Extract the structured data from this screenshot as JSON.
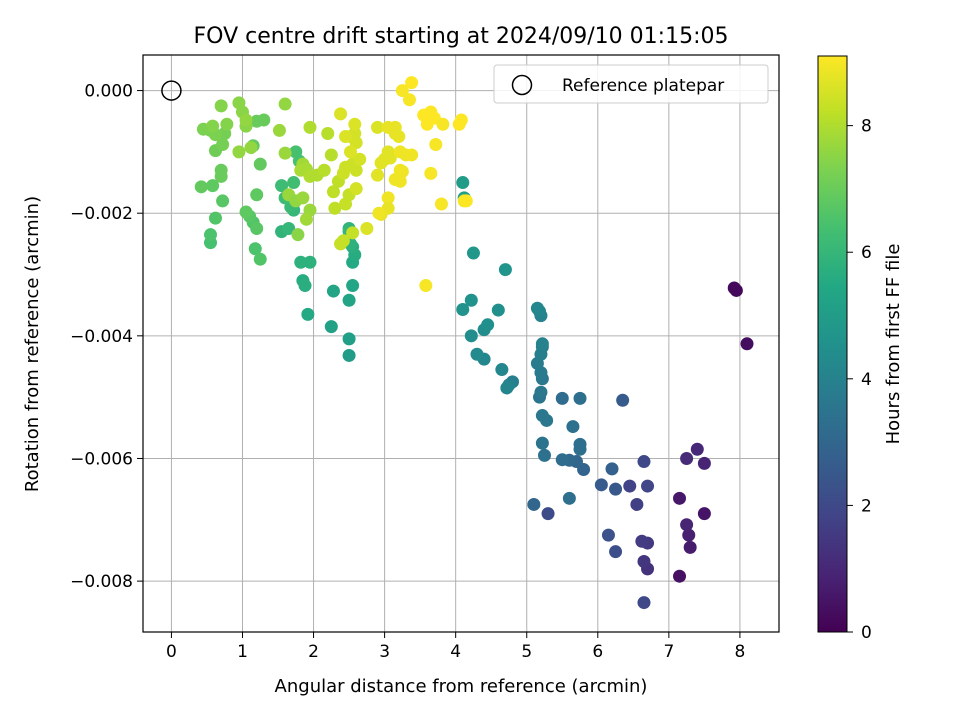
{
  "chart_data": {
    "type": "scatter",
    "title": "FOV centre drift starting at 2024/09/10 01:15:05",
    "xlabel": "Angular distance from reference (arcmin)",
    "ylabel": "Rotation from reference (arcmin)",
    "xlim": [
      -0.4,
      8.55
    ],
    "ylim": [
      -0.00883,
      0.00058
    ],
    "grid": true,
    "x_ticks": [
      0,
      1,
      2,
      3,
      4,
      5,
      6,
      7,
      8
    ],
    "x_tick_labels": [
      "0",
      "1",
      "2",
      "3",
      "4",
      "5",
      "6",
      "7",
      "8"
    ],
    "y_ticks": [
      0.0,
      -0.002,
      -0.004,
      -0.006,
      -0.008
    ],
    "y_tick_labels": [
      "0.000",
      "−0.002",
      "−0.004",
      "−0.006",
      "−0.008"
    ],
    "legend": {
      "label": "Reference platepar",
      "position": "top-right"
    },
    "reference_point": {
      "x": 0,
      "y": 0
    },
    "colorbar": {
      "label": "Hours from first FF file",
      "colormap": "viridis",
      "range": [
        0,
        9.1
      ],
      "ticks": [
        0,
        2,
        4,
        6,
        8
      ],
      "tick_labels": [
        "0",
        "2",
        "4",
        "6",
        "8"
      ]
    },
    "points": [
      [
        7.92,
        -0.00322,
        0.2
      ],
      [
        7.95,
        -0.00326,
        0.2
      ],
      [
        8.1,
        -0.00413,
        0.3
      ],
      [
        7.15,
        -0.00792,
        0.4
      ],
      [
        7.5,
        -0.0069,
        0.5
      ],
      [
        7.3,
        -0.00745,
        0.7
      ],
      [
        7.28,
        -0.00725,
        0.8
      ],
      [
        7.25,
        -0.00708,
        0.9
      ],
      [
        7.15,
        -0.00665,
        0.6
      ],
      [
        7.5,
        -0.00608,
        0.9
      ],
      [
        7.4,
        -0.00585,
        1.0
      ],
      [
        7.25,
        -0.006,
        1.1
      ],
      [
        6.7,
        -0.0078,
        1.3
      ],
      [
        6.65,
        -0.00768,
        1.4
      ],
      [
        6.7,
        -0.00738,
        1.5
      ],
      [
        6.62,
        -0.00735,
        1.6
      ],
      [
        6.55,
        -0.00675,
        1.7
      ],
      [
        6.45,
        -0.00645,
        1.8
      ],
      [
        6.7,
        -0.00645,
        1.9
      ],
      [
        6.65,
        -0.00605,
        2.0
      ],
      [
        6.65,
        -0.00835,
        2.0
      ],
      [
        6.25,
        -0.00752,
        2.2
      ],
      [
        6.15,
        -0.00725,
        2.3
      ],
      [
        6.25,
        -0.0065,
        2.5
      ],
      [
        6.05,
        -0.00643,
        2.6
      ],
      [
        6.2,
        -0.00617,
        2.8
      ],
      [
        5.8,
        -0.00618,
        2.9
      ],
      [
        5.7,
        -0.00605,
        3.0
      ],
      [
        5.6,
        -0.00603,
        3.1
      ],
      [
        5.5,
        -0.00602,
        3.2
      ],
      [
        5.75,
        -0.00585,
        3.3
      ],
      [
        5.75,
        -0.00577,
        3.3
      ],
      [
        5.65,
        -0.00548,
        3.4
      ],
      [
        5.3,
        -0.0069,
        2.1
      ],
      [
        5.1,
        -0.00675,
        3.0
      ],
      [
        5.6,
        -0.00665,
        3.3
      ],
      [
        5.5,
        -0.00502,
        3.2
      ],
      [
        5.75,
        -0.00502,
        3.3
      ],
      [
        6.35,
        -0.00505,
        2.6
      ],
      [
        5.25,
        -0.00595,
        3.4
      ],
      [
        5.22,
        -0.00575,
        3.5
      ],
      [
        5.28,
        -0.00538,
        3.6
      ],
      [
        5.22,
        -0.0053,
        3.6
      ],
      [
        5.18,
        -0.005,
        3.5
      ],
      [
        5.2,
        -0.00492,
        3.6
      ],
      [
        5.22,
        -0.0047,
        3.6
      ],
      [
        5.2,
        -0.0046,
        3.7
      ],
      [
        5.15,
        -0.00445,
        3.8
      ],
      [
        5.2,
        -0.0043,
        3.9
      ],
      [
        5.22,
        -0.00418,
        3.9
      ],
      [
        5.22,
        -0.00413,
        4.0
      ],
      [
        5.2,
        -0.00367,
        4.0
      ],
      [
        5.18,
        -0.0036,
        4.1
      ],
      [
        5.15,
        -0.00355,
        4.2
      ],
      [
        4.8,
        -0.00475,
        3.9
      ],
      [
        4.75,
        -0.0048,
        4.0
      ],
      [
        4.72,
        -0.00485,
        4.1
      ],
      [
        4.65,
        -0.00455,
        4.2
      ],
      [
        4.4,
        -0.00438,
        4.2
      ],
      [
        4.3,
        -0.0043,
        4.3
      ],
      [
        4.22,
        -0.004,
        4.4
      ],
      [
        4.4,
        -0.0039,
        4.4
      ],
      [
        4.45,
        -0.00382,
        4.5
      ],
      [
        4.6,
        -0.00358,
        4.5
      ],
      [
        4.1,
        -0.00357,
        4.6
      ],
      [
        4.22,
        -0.00342,
        4.6
      ],
      [
        4.7,
        -0.00292,
        4.7
      ],
      [
        4.25,
        -0.00265,
        4.8
      ],
      [
        4.1,
        -0.0015,
        5.0
      ],
      [
        4.12,
        -0.00175,
        5.1
      ],
      [
        2.5,
        -0.00432,
        5.0
      ],
      [
        2.5,
        -0.00405,
        5.1
      ],
      [
        2.25,
        -0.00385,
        5.2
      ],
      [
        2.5,
        -0.00342,
        5.3
      ],
      [
        2.28,
        -0.00327,
        5.3
      ],
      [
        2.55,
        -0.00318,
        5.4
      ],
      [
        1.92,
        -0.00365,
        5.5
      ],
      [
        1.85,
        -0.0031,
        5.6
      ],
      [
        1.88,
        -0.00318,
        5.7
      ],
      [
        1.82,
        -0.0028,
        5.8
      ],
      [
        1.95,
        -0.0028,
        5.8
      ],
      [
        2.55,
        -0.0028,
        5.5
      ],
      [
        2.58,
        -0.00268,
        5.6
      ],
      [
        2.55,
        -0.00255,
        5.7
      ],
      [
        2.52,
        -0.0025,
        5.8
      ],
      [
        2.5,
        -0.00225,
        5.9
      ],
      [
        2.5,
        -0.0023,
        6.0
      ],
      [
        1.55,
        -0.0023,
        5.9
      ],
      [
        1.65,
        -0.00225,
        6.0
      ],
      [
        1.72,
        -0.00195,
        6.0
      ],
      [
        1.68,
        -0.0019,
        6.1
      ],
      [
        1.6,
        -0.00175,
        6.2
      ],
      [
        1.55,
        -0.00155,
        6.2
      ],
      [
        1.72,
        -0.0015,
        6.3
      ],
      [
        1.75,
        -0.001,
        6.4
      ],
      [
        1.8,
        -0.00115,
        6.4
      ],
      [
        1.18,
        -0.00258,
        6.5
      ],
      [
        1.25,
        -0.00275,
        6.6
      ],
      [
        1.15,
        -0.00215,
        6.6
      ],
      [
        1.2,
        -0.00225,
        6.7
      ],
      [
        1.1,
        -0.00205,
        6.7
      ],
      [
        1.05,
        -0.00198,
        6.8
      ],
      [
        1.2,
        -0.0017,
        6.8
      ],
      [
        1.25,
        -0.0012,
        6.9
      ],
      [
        1.15,
        -0.0009,
        6.9
      ],
      [
        1.2,
        -0.0005,
        7.0
      ],
      [
        1.3,
        -0.00048,
        7.0
      ],
      [
        0.55,
        -0.00248,
        6.4
      ],
      [
        0.55,
        -0.00235,
        6.5
      ],
      [
        0.62,
        -0.00208,
        6.6
      ],
      [
        0.72,
        -0.0018,
        6.7
      ],
      [
        0.58,
        -0.00155,
        6.8
      ],
      [
        0.42,
        -0.00157,
        6.9
      ],
      [
        0.7,
        -0.0014,
        7.0
      ],
      [
        0.7,
        -0.0013,
        7.0
      ],
      [
        0.62,
        -0.00098,
        7.1
      ],
      [
        0.72,
        -0.00088,
        7.2
      ],
      [
        0.75,
        -0.0007,
        7.2
      ],
      [
        0.62,
        -0.00072,
        7.3
      ],
      [
        0.55,
        -0.00065,
        7.3
      ],
      [
        0.45,
        -0.00063,
        7.3
      ],
      [
        0.58,
        -0.00058,
        7.4
      ],
      [
        0.78,
        -0.00055,
        7.4
      ],
      [
        0.7,
        -0.00025,
        7.4
      ],
      [
        0.95,
        -0.0002,
        7.5
      ],
      [
        1.0,
        -0.00035,
        7.5
      ],
      [
        1.05,
        -0.00058,
        7.5
      ],
      [
        1.05,
        -0.00048,
        7.6
      ],
      [
        0.95,
        -0.001,
        7.6
      ],
      [
        1.12,
        -0.00093,
        7.6
      ],
      [
        1.6,
        -0.00022,
        7.6
      ],
      [
        1.52,
        -0.00065,
        7.7
      ],
      [
        1.6,
        -0.00102,
        7.7
      ],
      [
        1.65,
        -0.0017,
        7.7
      ],
      [
        1.78,
        -0.00235,
        7.5
      ],
      [
        1.75,
        -0.0018,
        7.6
      ],
      [
        1.85,
        -0.00175,
        7.7
      ],
      [
        1.95,
        -0.00195,
        7.7
      ],
      [
        1.9,
        -0.0021,
        7.8
      ],
      [
        1.85,
        -0.0012,
        7.8
      ],
      [
        1.82,
        -0.0013,
        7.9
      ],
      [
        1.9,
        -0.00128,
        7.9
      ],
      [
        1.95,
        -0.0014,
        8.0
      ],
      [
        2.05,
        -0.00138,
        8.0
      ],
      [
        2.15,
        -0.0013,
        8.1
      ],
      [
        1.95,
        -0.0006,
        8.0
      ],
      [
        2.2,
        -0.0007,
        8.1
      ],
      [
        2.25,
        -0.00105,
        8.1
      ],
      [
        2.28,
        -0.00165,
        8.2
      ],
      [
        2.35,
        -0.00148,
        8.2
      ],
      [
        2.3,
        -0.00192,
        8.2
      ],
      [
        2.38,
        -0.0025,
        8.3
      ],
      [
        2.42,
        -0.00245,
        8.3
      ],
      [
        2.55,
        -0.00232,
        8.3
      ],
      [
        2.45,
        -0.00185,
        8.3
      ],
      [
        2.5,
        -0.0017,
        8.3
      ],
      [
        2.42,
        -0.00135,
        8.4
      ],
      [
        2.45,
        -0.00125,
        8.4
      ],
      [
        2.55,
        -0.0012,
        8.4
      ],
      [
        2.6,
        -0.0013,
        8.4
      ],
      [
        2.65,
        -0.00112,
        8.5
      ],
      [
        2.6,
        -0.0016,
        8.5
      ],
      [
        2.52,
        -0.00075,
        8.5
      ],
      [
        2.58,
        -0.0007,
        8.5
      ],
      [
        2.6,
        -0.00085,
        8.5
      ],
      [
        2.58,
        -0.00055,
        8.6
      ],
      [
        2.38,
        -0.00038,
        8.6
      ],
      [
        2.45,
        -0.00075,
        8.6
      ],
      [
        2.52,
        -0.001,
        8.6
      ],
      [
        2.75,
        -0.00225,
        8.6
      ],
      [
        2.9,
        -0.0006,
        8.6
      ],
      [
        2.95,
        -0.00118,
        8.7
      ],
      [
        2.9,
        -0.00138,
        8.7
      ],
      [
        3.0,
        -0.00112,
        8.7
      ],
      [
        3.08,
        -0.0011,
        8.7
      ],
      [
        3.05,
        -0.001,
        8.7
      ],
      [
        3.15,
        -0.0007,
        8.8
      ],
      [
        3.15,
        -0.0006,
        8.8
      ],
      [
        3.05,
        -0.0006,
        8.8
      ],
      [
        3.2,
        -0.00075,
        8.8
      ],
      [
        3.22,
        -0.0013,
        8.9
      ],
      [
        3.15,
        -0.00145,
        8.9
      ],
      [
        3.22,
        -0.00148,
        8.9
      ],
      [
        3.22,
        -0.001,
        8.9
      ],
      [
        3.3,
        -0.00105,
        8.9
      ],
      [
        3.38,
        -0.00105,
        8.9
      ],
      [
        3.05,
        -0.00175,
        8.9
      ],
      [
        3.05,
        -0.00192,
        8.8
      ],
      [
        2.95,
        -0.00202,
        8.8
      ],
      [
        2.92,
        -0.002,
        8.9
      ],
      [
        3.25,
        -0.00132,
        8.9
      ],
      [
        3.25,
        0.0,
        9.0
      ],
      [
        3.35,
        -0.00015,
        9.0
      ],
      [
        3.38,
        0.00013,
        9.1
      ],
      [
        3.55,
        -0.0004,
        9.1
      ],
      [
        3.6,
        -0.00055,
        9.1
      ],
      [
        3.65,
        -0.00035,
        9.1
      ],
      [
        3.7,
        -0.00045,
        9.1
      ],
      [
        3.72,
        -0.00088,
        9.0
      ],
      [
        3.82,
        -0.00055,
        9.0
      ],
      [
        3.65,
        -0.00135,
        9.0
      ],
      [
        3.8,
        -0.00185,
        9.0
      ],
      [
        3.58,
        -0.00318,
        9.0
      ],
      [
        4.05,
        -0.00055,
        9.1
      ],
      [
        4.08,
        -0.00048,
        9.1
      ],
      [
        4.12,
        -0.0018,
        9.0
      ],
      [
        4.15,
        -0.0018,
        9.1
      ]
    ]
  }
}
